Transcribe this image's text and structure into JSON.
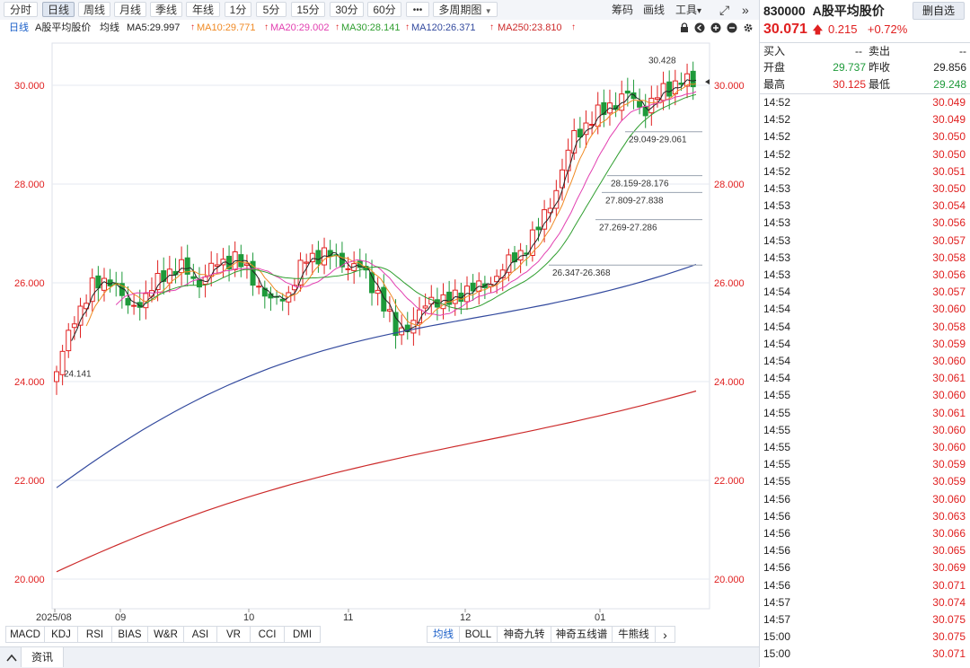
{
  "toolbar": {
    "periods": [
      "分时",
      "日线",
      "周线",
      "月线",
      "季线",
      "年线",
      "1分",
      "5分",
      "15分",
      "30分",
      "60分"
    ],
    "active": "日线",
    "more": "•••",
    "multi_period": "多周期图",
    "multi_period_arrow": "▼",
    "right": {
      "chips": "筹码",
      "drawing": "画线",
      "tools": "工具",
      "tools_arrow": "▾",
      "fullscreen_icon": "⤢",
      "collapse_icon": "»"
    }
  },
  "ma_line": {
    "period": "日线",
    "name": "A股平均股价",
    "type": "均线",
    "ma5": "MA5:29.997",
    "ma10": "MA10:29.771",
    "ma20": "MA20:29.002",
    "ma30": "MA30:28.141",
    "ma120": "MA120:26.371",
    "ma250": "MA250:23.810",
    "up_arrow": "↑",
    "colors": {
      "ma5": "#222222",
      "ma10": "#f08a24",
      "ma20": "#e23fb0",
      "ma30": "#2f9e2f",
      "ma120": "#334a9e",
      "ma250": "#cc2a2a"
    }
  },
  "chart_data": {
    "type": "candlestick",
    "y_ticks": [
      "30.000",
      "28.000",
      "26.000",
      "24.000",
      "22.000",
      "20.000"
    ],
    "ylim": [
      19.3,
      30.9
    ],
    "x_labels": [
      "2025/08",
      "09",
      "10",
      "11",
      "12",
      "01"
    ],
    "annotations": {
      "high": "30.428",
      "low": "24.141",
      "ranges": [
        "29.049-29.061",
        "28.159-28.176",
        "27.809-27.838",
        "27.269-27.286",
        "26.347-26.368"
      ]
    },
    "colors": {
      "up": "#e02020",
      "down": "#1e9a3a",
      "grid": "#e6eaf0"
    }
  },
  "indicators_left": [
    "MACD",
    "KDJ",
    "RSI",
    "BIAS",
    "W&R",
    "ASI",
    "VR",
    "CCI",
    "DMI"
  ],
  "indicators_right": [
    "均线",
    "BOLL",
    "神奇九转",
    "神奇五线谱",
    "牛熊线"
  ],
  "indicators_active": "均线",
  "indicators_more": "›",
  "bottom_tab": "资讯",
  "quote": {
    "code": "830000",
    "name": "A股平均股价",
    "remove_btn": "删自选",
    "price": "30.071",
    "arrow": "🡅",
    "change": "0.215",
    "pct": "+0.72%",
    "buy_label": "买入",
    "buy_val": "--",
    "sell_label": "卖出",
    "sell_val": "--",
    "open_label": "开盘",
    "open_val": "29.737",
    "prev_label": "昨收",
    "prev_val": "29.856",
    "high_label": "最高",
    "high_val": "30.125",
    "low_label": "最低",
    "low_val": "29.248"
  },
  "ticks": [
    {
      "time": "14:52",
      "price": "30.049"
    },
    {
      "time": "14:52",
      "price": "30.049"
    },
    {
      "time": "14:52",
      "price": "30.050"
    },
    {
      "time": "14:52",
      "price": "30.050"
    },
    {
      "time": "14:52",
      "price": "30.051"
    },
    {
      "time": "14:53",
      "price": "30.050"
    },
    {
      "time": "14:53",
      "price": "30.054"
    },
    {
      "time": "14:53",
      "price": "30.056"
    },
    {
      "time": "14:53",
      "price": "30.057"
    },
    {
      "time": "14:53",
      "price": "30.058"
    },
    {
      "time": "14:53",
      "price": "30.056"
    },
    {
      "time": "14:54",
      "price": "30.057"
    },
    {
      "time": "14:54",
      "price": "30.060"
    },
    {
      "time": "14:54",
      "price": "30.058"
    },
    {
      "time": "14:54",
      "price": "30.059"
    },
    {
      "time": "14:54",
      "price": "30.060"
    },
    {
      "time": "14:54",
      "price": "30.061"
    },
    {
      "time": "14:55",
      "price": "30.060"
    },
    {
      "time": "14:55",
      "price": "30.061"
    },
    {
      "time": "14:55",
      "price": "30.060"
    },
    {
      "time": "14:55",
      "price": "30.060"
    },
    {
      "time": "14:55",
      "price": "30.059"
    },
    {
      "time": "14:55",
      "price": "30.059"
    },
    {
      "time": "14:56",
      "price": "30.060"
    },
    {
      "time": "14:56",
      "price": "30.063"
    },
    {
      "time": "14:56",
      "price": "30.066"
    },
    {
      "time": "14:56",
      "price": "30.065"
    },
    {
      "time": "14:56",
      "price": "30.069"
    },
    {
      "time": "14:56",
      "price": "30.071"
    },
    {
      "time": "14:57",
      "price": "30.074"
    },
    {
      "time": "14:57",
      "price": "30.075"
    },
    {
      "time": "15:00",
      "price": "30.075"
    },
    {
      "time": "15:00",
      "price": "30.071"
    }
  ]
}
